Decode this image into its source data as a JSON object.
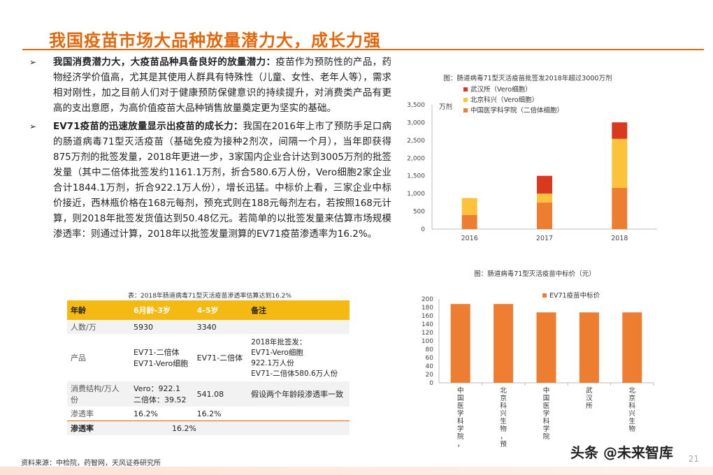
{
  "title": "我国疫苗市场大品种放量潜力大，成长力强",
  "bullets": [
    {
      "bold": "我国消费潜力大，大疫苗品种具备良好的放量潜力：",
      "text": "疫苗作为预防性的产品，药物经济学价值高，尤其是其使用人群具有特殊性（儿童、女性、老年人等），需求相对刚性，加之目前人们对于健康预防保健意识的持续提升，对消费类产品有更高的支出意愿，为高价值疫苗大品种销售放量奠定更为坚实的基础。"
    },
    {
      "bold": "EV71疫苗的迅速放量显示出疫苗的成长力：",
      "text": "我国在2016年上市了预防手足口病的肠道病毒71型灭活疫苗（基础免疫为接种2剂次，间隔一个月），当年即获得875万剂的批签发量，2018年更进一步，3家国内企业合计达到3005万剂的批签发量（其中二倍体批签发约1161.1万剂，折合580.6万人份，Vero细胞2家企业合计1844.1万剂，折合922.1万人份），增长迅猛。中标价上看，三家企业中标价接近，西林瓶价格在168元每剂，预充式则在188元每剂左右，若按照168元计算，则2018年批签发货值达到50.48亿元。若简单的以批签发量来估算市场规模渗透率：则通过计算，2018年以批签发量测算的EV71疫苗渗透率为16.2%。"
    }
  ],
  "table": {
    "caption": "表：2018年肠道病毒71型灭活疫苗渗透率估算达到16.2%",
    "header": [
      "年龄",
      "6月龄-3岁",
      "4-5岁",
      "备注"
    ],
    "rows": [
      {
        "label": "人数/万",
        "c1": "5930",
        "c2": "3340",
        "c3": ""
      },
      {
        "label": "产品",
        "c1": "EV71-二倍体\nEV71-Vero细胞",
        "c2": "EV71-二倍体",
        "c3": "2018年批签发：\nEV71-Vero细胞\n922.1万人份\nEV71-二倍体580.6万人份"
      },
      {
        "label": "消费结构/万人份",
        "c1": "Vero：922.1\n二倍体：39.52",
        "c2": "541.08",
        "c3": "假设两个年龄段渗透率一致"
      },
      {
        "label": "渗透率",
        "c1": "16.2%",
        "c2": "16.2%",
        "c3": ""
      }
    ],
    "last_row": {
      "label": "渗透率",
      "value": "16.2%"
    }
  },
  "chart1_title": "图：肠道病毒71型灭活疫苗批签发2018年超过3000万剂",
  "chart2_title": "图：肠道病毒71型灭活疫苗中标价（元）",
  "chart_data": [
    {
      "type": "bar",
      "stacked": true,
      "title": "图：肠道病毒71型灭活疫苗批签发2018年超过3000万剂",
      "ylabel": "万剂",
      "categories": [
        "2016",
        "2017",
        "2018"
      ],
      "ylim": [
        0,
        3500
      ],
      "yticks": [
        "0",
        "500",
        "1,000",
        "1,500",
        "2,000",
        "2,500",
        "3,000",
        "3,500"
      ],
      "series": [
        {
          "name": "中国医学科学院（二倍体细胞）",
          "color": "#ed7d31",
          "values": [
            400,
            750,
            1161
          ]
        },
        {
          "name": "北京科兴（Vero细胞）",
          "color": "#fcc23c",
          "values": [
            475,
            250,
            1380
          ]
        },
        {
          "name": "武汉所（Vero细胞）",
          "color": "#d9391e",
          "values": [
            0,
            500,
            464
          ]
        }
      ],
      "legend": "top-left"
    },
    {
      "type": "bar",
      "title": "图：肠道病毒71型灭活疫苗中标价（元）",
      "categories": [
        "中国医学科学院，预充式",
        "北京科兴生物，预充式",
        "中国医学科学院",
        "武汉所",
        "北京科兴生物"
      ],
      "category_lines": [
        [
          "中",
          "国",
          "医",
          "学",
          "科",
          "学",
          "院",
          "，",
          "预",
          "充",
          "式"
        ],
        [
          "北",
          "京",
          "科",
          "兴",
          "生",
          "物",
          "，",
          "预",
          "充",
          "式"
        ],
        [
          "中",
          "国",
          "医",
          "学",
          "科",
          "学",
          "院"
        ],
        [
          "武",
          "汉",
          "所"
        ],
        [
          "北",
          "京",
          "科",
          "兴",
          "生",
          "物"
        ]
      ],
      "series": [
        {
          "name": "EV71疫苗中标价",
          "color": "#ed7d31",
          "values": [
            188,
            188,
            168,
            168,
            168
          ]
        }
      ],
      "ylim": [
        0,
        200
      ],
      "yticks": [
        "0",
        "20",
        "40",
        "60",
        "80",
        "100",
        "120",
        "140",
        "160",
        "180",
        "200"
      ],
      "legend": "top"
    }
  ],
  "footer": {
    "source": "资料来源：中检院，药智网，天风证券研究所",
    "page": "21",
    "watermark": "头条 @未来智库"
  }
}
